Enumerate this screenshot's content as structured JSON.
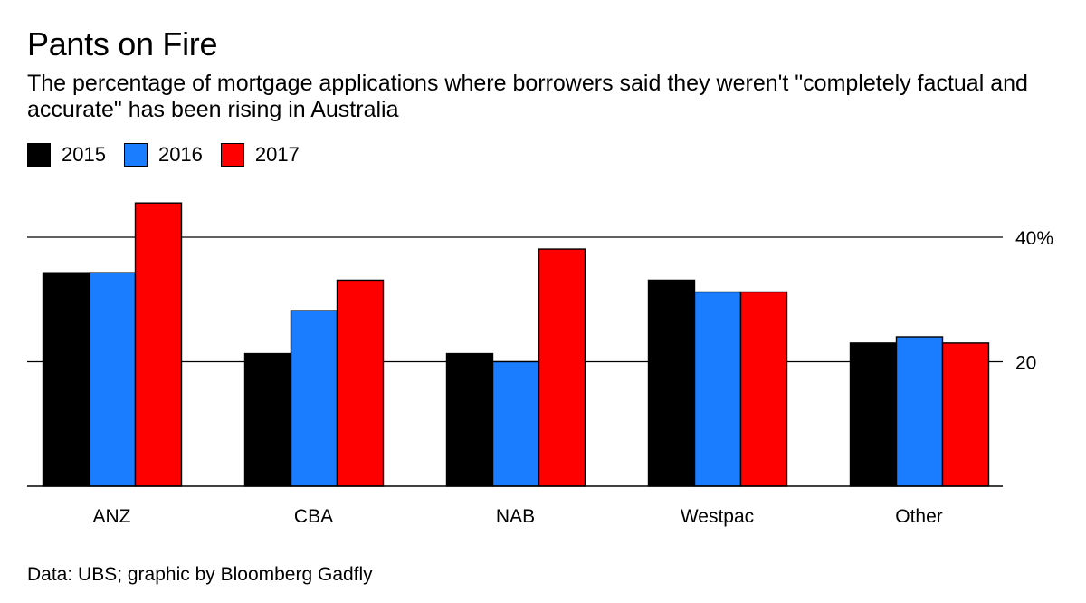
{
  "title": "Pants on Fire",
  "subtitle": "The percentage of mortgage applications where borrowers said they weren't \"completely factual and accurate\" has been rising in Australia",
  "source": "Data: UBS; graphic by Bloomberg Gadfly",
  "chart_data": {
    "type": "bar",
    "title": "Pants on Fire",
    "xlabel": "",
    "ylabel": "",
    "categories": [
      "ANZ",
      "CBA",
      "NAB",
      "Westpac",
      "Other"
    ],
    "series": [
      {
        "name": "2015",
        "color": "#000000",
        "values": [
          34.3,
          21.3,
          21.3,
          33.1,
          23.0
        ]
      },
      {
        "name": "2016",
        "color": "#1a7cff",
        "values": [
          34.3,
          28.2,
          20.0,
          31.2,
          24.0
        ]
      },
      {
        "name": "2017",
        "color": "#ff0000",
        "values": [
          45.5,
          33.1,
          38.1,
          31.2,
          23.0
        ]
      }
    ],
    "ylim": [
      0,
      48
    ],
    "yticks": [
      {
        "value": 20,
        "label": "20"
      },
      {
        "value": 40,
        "label": "40%"
      }
    ],
    "grid": true,
    "legend_position": "top-left"
  }
}
